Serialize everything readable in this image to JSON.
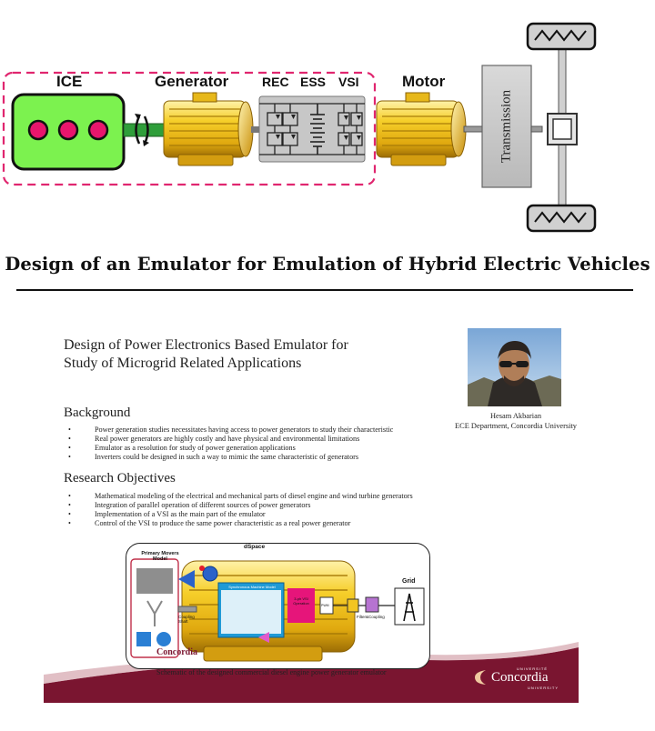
{
  "diagram": {
    "ice_label": "ICE",
    "generator_label": "Generator",
    "rec_label": "REC",
    "ess_label": "ESS",
    "vsi_label": "VSI",
    "motor_label": "Motor",
    "transmission_label": "Transmission"
  },
  "page_title": "Design of an Emulator for Emulation of Hybrid Electric Vehicles",
  "poster": {
    "title_line1": "Design of Power Electronics Based Emulator for",
    "title_line2": "Study of Microgrid Related Applications",
    "author_name": "Hesam Akbarian",
    "author_affiliation": "ECE Department, Concordia University",
    "background_heading": "Background",
    "background_items": [
      "Power generation studies necessitates  having access to power generators to study their characteristic",
      "Real power generators are highly costly and have physical and environmental limitations",
      "Emulator as a resolution for study of power generation applications",
      "Inverters could be designed in such a way to mimic the same characteristic of generators"
    ],
    "objectives_heading": "Research Objectives",
    "objectives_items": [
      "Mathematical modeling of the electrical and mechanical parts of diesel engine and wind turbine generators",
      "Integration of parallel operation of different sources of power generators",
      "Implementation of a VSI as the main part of the emulator",
      "Control of the VSI to produce the same power characteristic as a real power generator"
    ],
    "schematic": {
      "dspace_label": "dSpace",
      "primary_movers_label": "Primary Movers\nModel",
      "sync_machine_label": "Synchronous Machine Model",
      "vsi_operation_label": "3-ph VSI\nOperation",
      "pwm_label": "PWM",
      "coupling_shaft_label": "Coupling\nShaft",
      "filter_label": "Filter&Coupling",
      "grid_label": "Grid",
      "inner_logo_text": "Concordia"
    },
    "caption": "Schematic of the designed commercial diesel engine power generator emulator",
    "logo_small": "UNIVERSITÉ",
    "logo_main": "Concordia",
    "logo_sub": "UNIVERSITY"
  },
  "colors": {
    "ice_green": "#7cf24f",
    "dashed_pink": "#e0266f",
    "motor_gold": "#f0c419",
    "transmission_gray": "#c3c3c3",
    "poster_maroon": "#7a1530",
    "shaft_green": "#2f9e3a",
    "vsi_magenta": "#e6157a"
  }
}
